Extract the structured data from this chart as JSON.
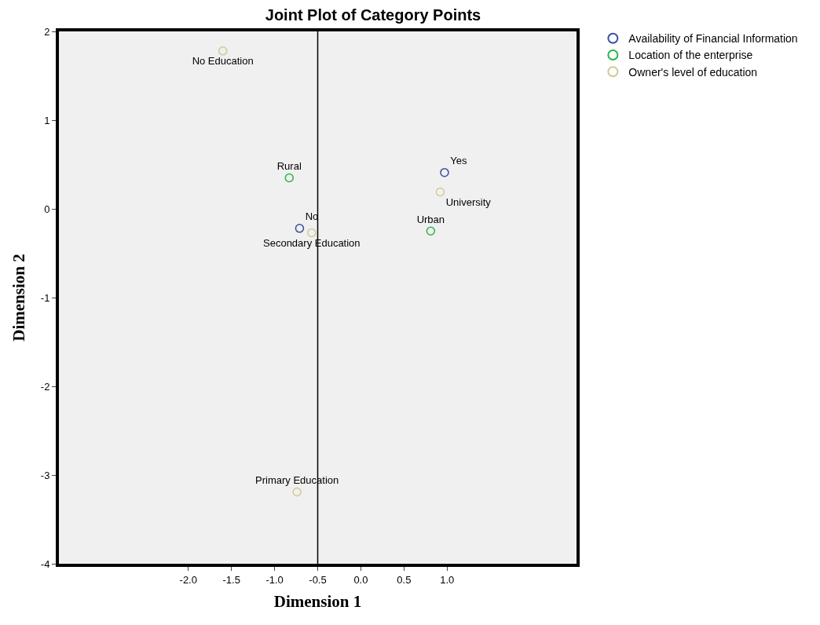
{
  "chart_data": {
    "type": "scatter",
    "title": "Joint Plot of Category Points",
    "xlabel": "Dimension 1",
    "ylabel": "Dimension 2",
    "xlim": [
      -3.5,
      2.5
    ],
    "ylim": [
      -4,
      2
    ],
    "xticks": [
      {
        "value": -2,
        "label": "-2.0"
      },
      {
        "value": -1.5,
        "label": "-1.5"
      },
      {
        "value": -1,
        "label": "-1.0"
      },
      {
        "value": -0.5,
        "label": "-0.5"
      },
      {
        "value": 0,
        "label": "0.0"
      },
      {
        "value": 0.5,
        "label": "0.5"
      },
      {
        "value": 1,
        "label": "1.0"
      }
    ],
    "yticks": [
      2,
      1,
      0,
      -1,
      -2,
      -3,
      -4
    ],
    "grid": false,
    "legend": "top right",
    "marker": "circle",
    "ref_lines": [
      {
        "axis": "x",
        "value": -0.5,
        "color": "#000000"
      }
    ],
    "series": [
      {
        "name": "Availability of Financial Information",
        "color": "#3a4ea0",
        "x": [
          0.97,
          -0.71
        ],
        "values": [
          0.41,
          -0.22
        ],
        "value_labels": [
          "Yes",
          "No"
        ]
      },
      {
        "name": "Location of the enterprise",
        "color": "#2db34a",
        "x": [
          -0.83,
          0.81
        ],
        "values": [
          0.35,
          -0.25
        ],
        "value_labels": [
          "Rural",
          "Urban"
        ]
      },
      {
        "name": "Owner's level of education",
        "color": "#d2c897",
        "x": [
          -1.6,
          -0.74,
          -0.57,
          0.92
        ],
        "values": [
          1.78,
          -3.19,
          -0.27,
          0.19
        ],
        "value_labels": [
          "No Education",
          "Primary Education",
          "Secondary Education",
          "University"
        ]
      }
    ]
  }
}
